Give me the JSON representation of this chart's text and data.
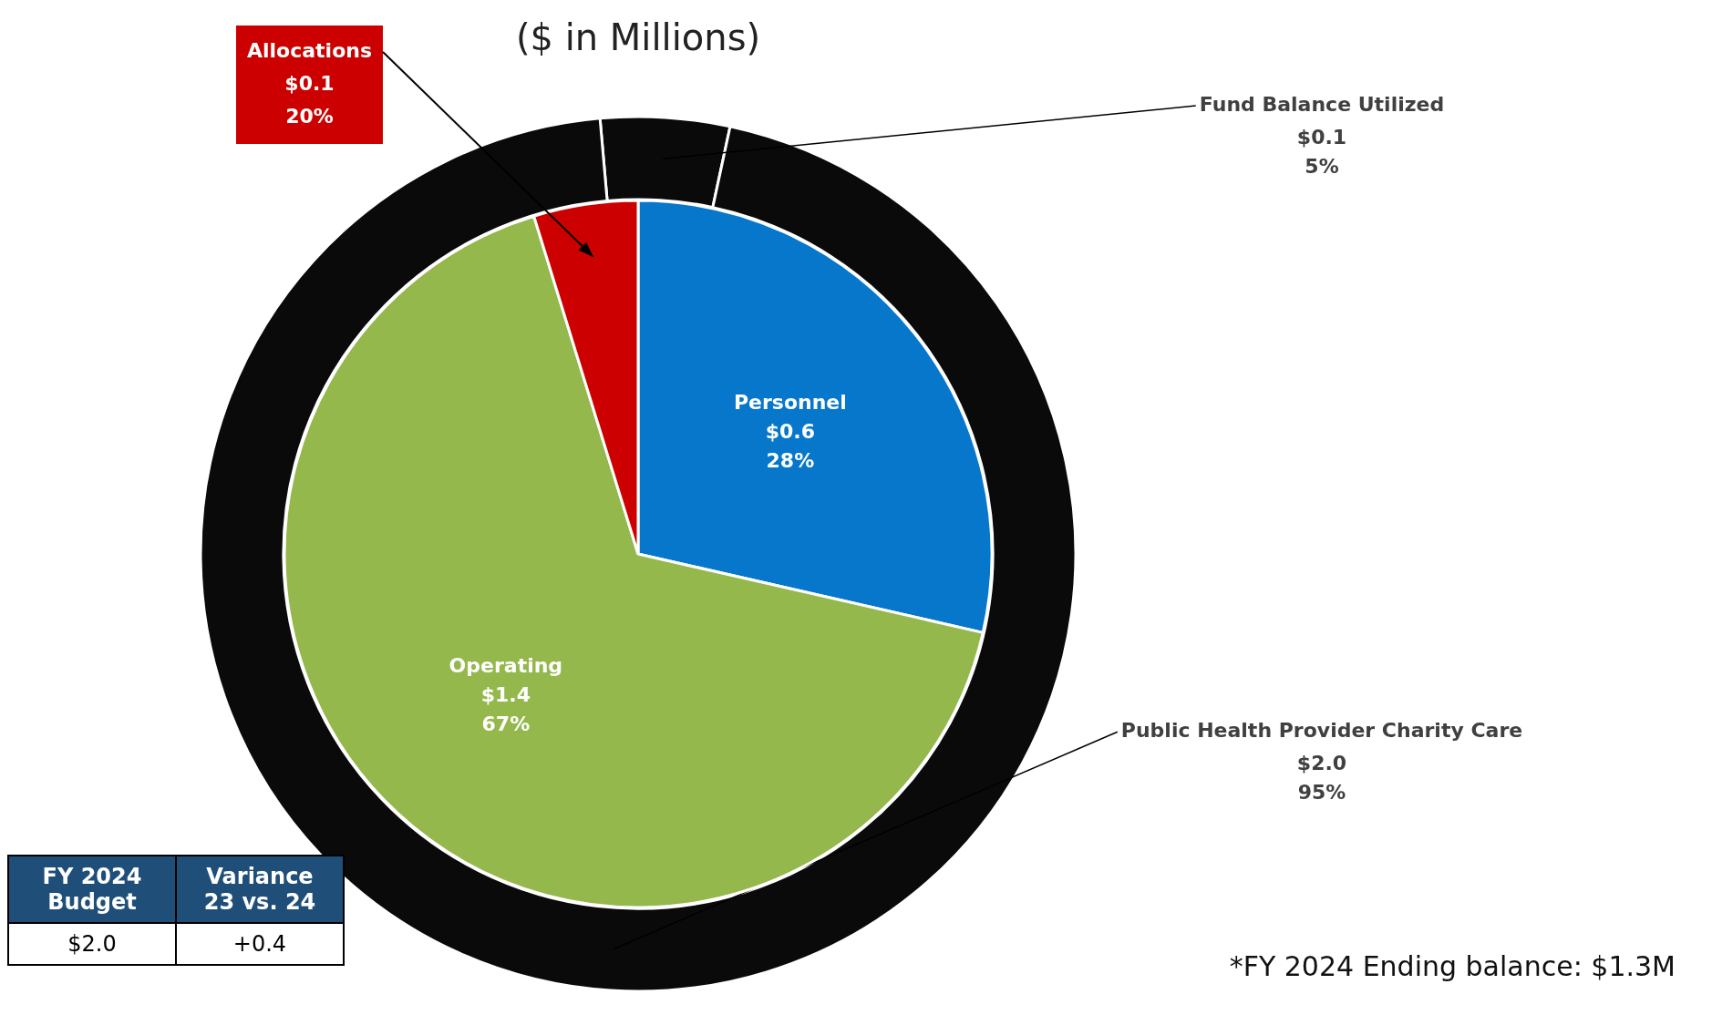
{
  "chart_data": [
    {
      "type": "donut",
      "title": "($ in Millions)",
      "categories": [
        "Fund Balance Utilized",
        "Public Health Provider Charity Care"
      ],
      "values": [
        0.1,
        2.0
      ],
      "colors": [
        "#0a0a0a",
        "#0a0a0a"
      ],
      "value_labels": [
        "$0.1\n5%",
        "$2.0\n95%"
      ],
      "legend": false,
      "annotations": [
        "FY 2024 Budget",
        "Variance 23 vs. 24",
        "$2.0",
        "+0.4",
        "*FY 2024 Ending balance: $1.3M"
      ]
    },
    {
      "type": "pie",
      "categories": [
        "Personnel",
        "Operating",
        "Allocations"
      ],
      "values": [
        0.6,
        1.4,
        0.1
      ],
      "colors": [
        "#0777cc",
        "#94b84c",
        "#cc0000"
      ],
      "value_labels": [
        "$0.6\n28%",
        "$1.4\n67%",
        "$0.1\n20%"
      ],
      "legend": false
    }
  ]
}
